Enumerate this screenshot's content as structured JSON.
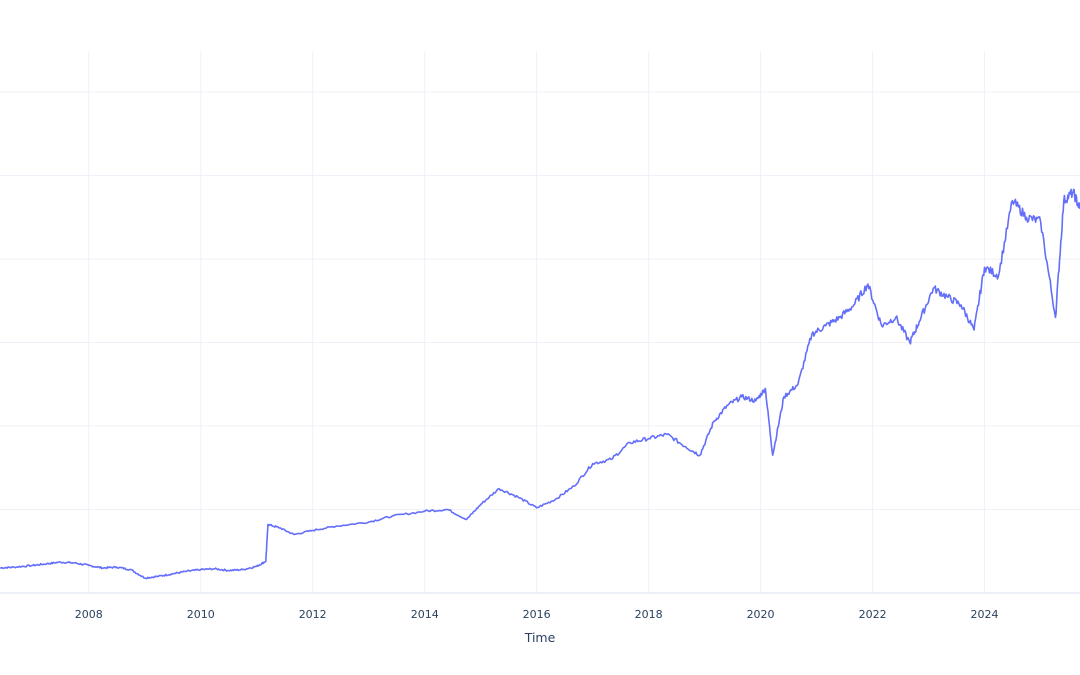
{
  "chart_data": {
    "type": "line",
    "title": "",
    "xlabel": "Time",
    "ylabel": "",
    "x_tick_labels": [
      "2008",
      "2010",
      "2012",
      "2014",
      "2016",
      "2018",
      "2020",
      "2022",
      "2024"
    ],
    "xlim": [
      "2006-06-01",
      "2025-09-15"
    ],
    "ylim": [
      0,
      600
    ],
    "y_gridlines": [
      0,
      100,
      200,
      300,
      400,
      500,
      600
    ],
    "grid": true,
    "legend": "none",
    "series": [
      {
        "color": "#636efa",
        "x": [
          "2006-06-01",
          "2006-09-01",
          "2007-01-01",
          "2007-04-01",
          "2007-07-01",
          "2007-10-01",
          "2008-01-01",
          "2008-04-01",
          "2008-07-01",
          "2008-10-01",
          "2009-01-01",
          "2009-04-01",
          "2009-07-01",
          "2009-10-01",
          "2010-01-01",
          "2010-04-01",
          "2010-07-01",
          "2010-10-01",
          "2011-01-01",
          "2011-03-01",
          "2011-03-15",
          "2011-06-01",
          "2011-09-01",
          "2012-01-01",
          "2012-06-01",
          "2013-01-01",
          "2013-06-01",
          "2014-01-01",
          "2014-06-01",
          "2014-10-01",
          "2015-01-01",
          "2015-05-01",
          "2015-09-01",
          "2016-01-01",
          "2016-05-01",
          "2016-09-01",
          "2017-01-01",
          "2017-05-01",
          "2017-09-01",
          "2018-01-01",
          "2018-05-01",
          "2018-09-01",
          "2018-12-01",
          "2019-03-01",
          "2019-06-01",
          "2019-09-01",
          "2019-12-01",
          "2020-02-01",
          "2020-03-20",
          "2020-06-01",
          "2020-09-01",
          "2020-12-01",
          "2021-03-01",
          "2021-06-01",
          "2021-09-01",
          "2021-12-01",
          "2022-03-01",
          "2022-06-01",
          "2022-09-01",
          "2022-11-01",
          "2023-02-01",
          "2023-05-01",
          "2023-08-01",
          "2023-10-25",
          "2024-01-01",
          "2024-04-01",
          "2024-07-01",
          "2024-10-01",
          "2025-01-01",
          "2025-04-08",
          "2025-06-01",
          "2025-08-01",
          "2025-09-15"
        ],
        "y": [
          30,
          31,
          33,
          35,
          37,
          36,
          33,
          30,
          31,
          28,
          18,
          20,
          23,
          26,
          28,
          29,
          27,
          28,
          32,
          38,
          82,
          78,
          70,
          75,
          80,
          85,
          92,
          98,
          100,
          88,
          106,
          125,
          115,
          102,
          112,
          128,
          155,
          160,
          180,
          185,
          190,
          175,
          165,
          205,
          225,
          235,
          230,
          245,
          165,
          235,
          250,
          310,
          320,
          330,
          345,
          370,
          320,
          330,
          300,
          325,
          365,
          355,
          345,
          315,
          390,
          380,
          470,
          450,
          445,
          330,
          470,
          480,
          460
        ]
      }
    ]
  }
}
